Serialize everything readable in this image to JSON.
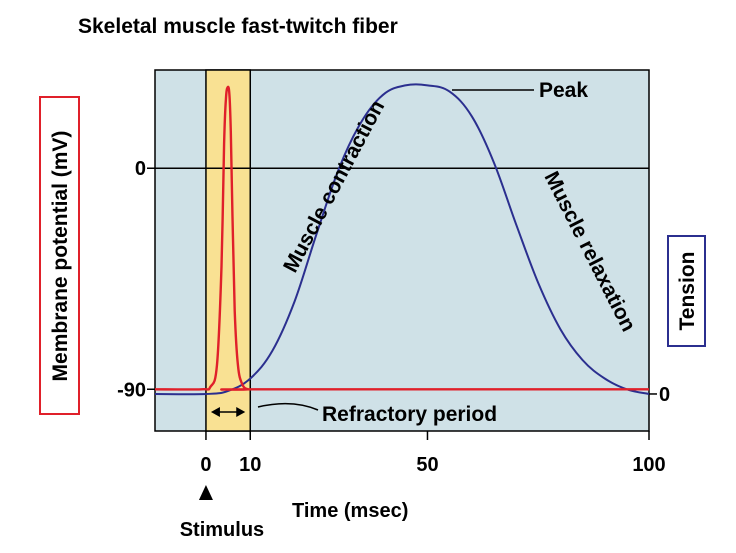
{
  "chart_data": {
    "type": "line",
    "title": "Skeletal muscle fast-twitch fiber",
    "xlabel": "Time (msec)",
    "ylabel_left": "Membrane potential (mV)",
    "ylabel_right": "Tension",
    "x_ticks": [
      "0",
      "10",
      "50",
      "100"
    ],
    "x_tick_values": [
      0,
      10,
      50,
      100
    ],
    "xlim": [
      -11.5,
      100
    ],
    "y_left_ticks": [
      "0",
      "-90"
    ],
    "y_left_tick_values": [
      0,
      -90
    ],
    "ylim_left": [
      -107,
      40
    ],
    "y_right_ticks": [
      "0"
    ],
    "y_right_tick_values": [
      0
    ],
    "ylim_right": [
      -0.12,
      1.05
    ],
    "refractory_window": [
      0,
      10
    ],
    "refractory_label": "Refractory period",
    "stimulus_label": "Stimulus",
    "stimulus_time": 0,
    "series": [
      {
        "name": "Membrane potential",
        "axis": "left",
        "color": "#e0202a",
        "x": [
          -11.5,
          -1,
          1,
          2.5,
          3.5,
          4.1,
          4.5,
          4.9,
          5.3,
          5.6,
          6.0,
          6.5,
          7.2,
          8.2,
          9.5,
          11,
          100
        ],
        "y": [
          -90,
          -90,
          -89,
          -80,
          -40,
          10,
          28,
          33,
          30,
          15,
          -20,
          -58,
          -80,
          -88,
          -90,
          -90,
          -90
        ]
      },
      {
        "name": "Tension",
        "axis": "right",
        "color": "#2b2f8f",
        "x": [
          -11.5,
          0,
          5,
          10,
          15,
          20,
          25,
          30,
          35,
          40,
          45,
          50,
          55,
          60,
          65,
          70,
          75,
          80,
          85,
          90,
          95,
          100
        ],
        "y": [
          0,
          0,
          0.01,
          0.05,
          0.14,
          0.3,
          0.52,
          0.73,
          0.88,
          0.97,
          1.0,
          1.0,
          0.98,
          0.9,
          0.75,
          0.55,
          0.36,
          0.21,
          0.11,
          0.05,
          0.015,
          0
        ]
      }
    ],
    "annotations": [
      {
        "text": "Muscle contraction"
      },
      {
        "text": "Muscle relaxation"
      },
      {
        "text": "Peak"
      }
    ],
    "colors": {
      "plot_bg": "#cfe1e7",
      "window_fill": "#f9e193",
      "membrane_label_border": "#e0202a",
      "tension_label_border": "#2b2f8f"
    }
  }
}
